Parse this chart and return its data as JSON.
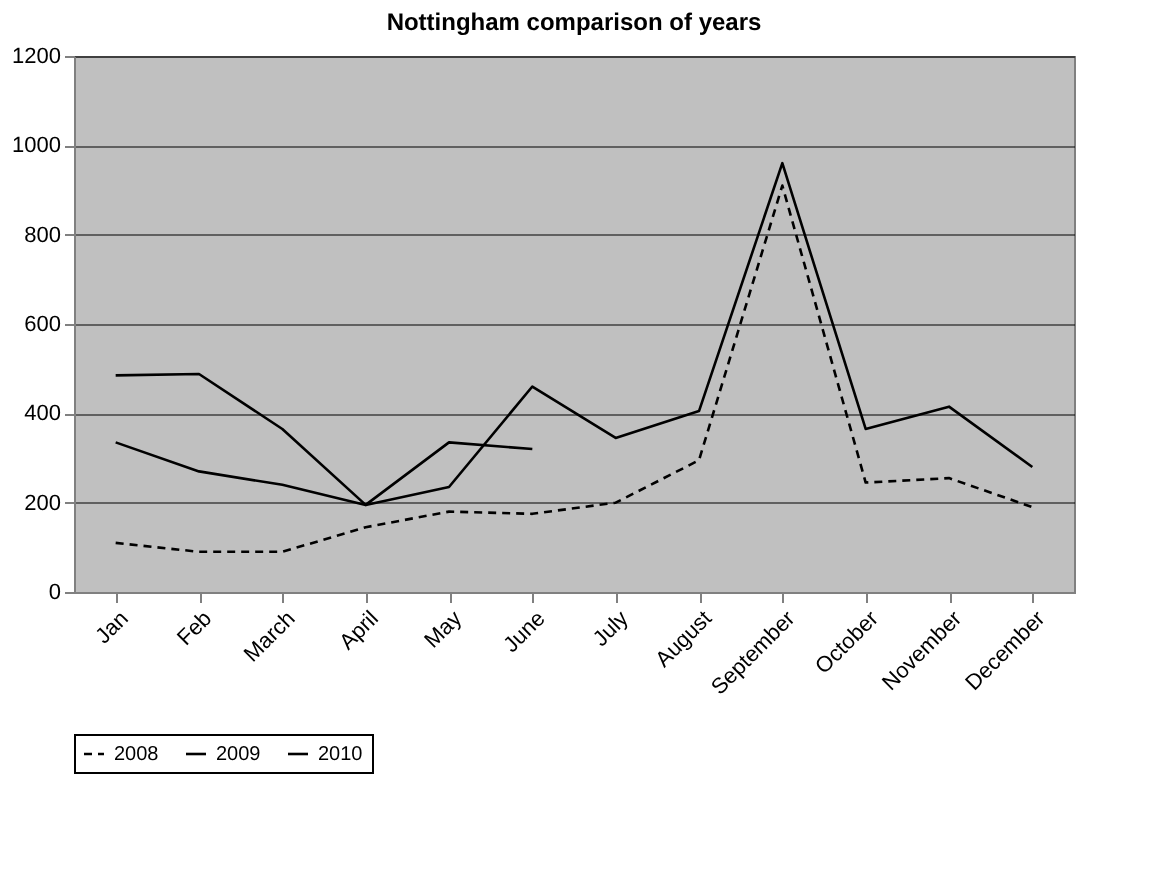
{
  "chart_data": {
    "type": "line",
    "title": "Nottingham comparison of years",
    "categories": [
      "Jan",
      "Feb",
      "March",
      "April",
      "May",
      "June",
      "July",
      "August",
      "September",
      "October",
      "November",
      "December"
    ],
    "series": [
      {
        "name": "2008",
        "color": "#000000",
        "line_style": "dashed",
        "values": [
          110,
          90,
          90,
          145,
          180,
          175,
          200,
          295,
          910,
          245,
          255,
          190
        ]
      },
      {
        "name": "2009",
        "color": "#000000",
        "line_style": "solid",
        "values": [
          335,
          270,
          240,
          195,
          235,
          460,
          345,
          405,
          960,
          365,
          415,
          280
        ]
      },
      {
        "name": "2010",
        "color": "#000000",
        "line_style": "solid",
        "values": [
          485,
          488,
          365,
          195,
          335,
          320,
          null,
          null,
          null,
          null,
          null,
          null
        ]
      }
    ],
    "ylim": [
      0,
      1200
    ],
    "yticks": [
      0,
      200,
      400,
      600,
      800,
      1000,
      1200
    ],
    "grid": "y",
    "legend": "bottom",
    "marker": "none"
  }
}
